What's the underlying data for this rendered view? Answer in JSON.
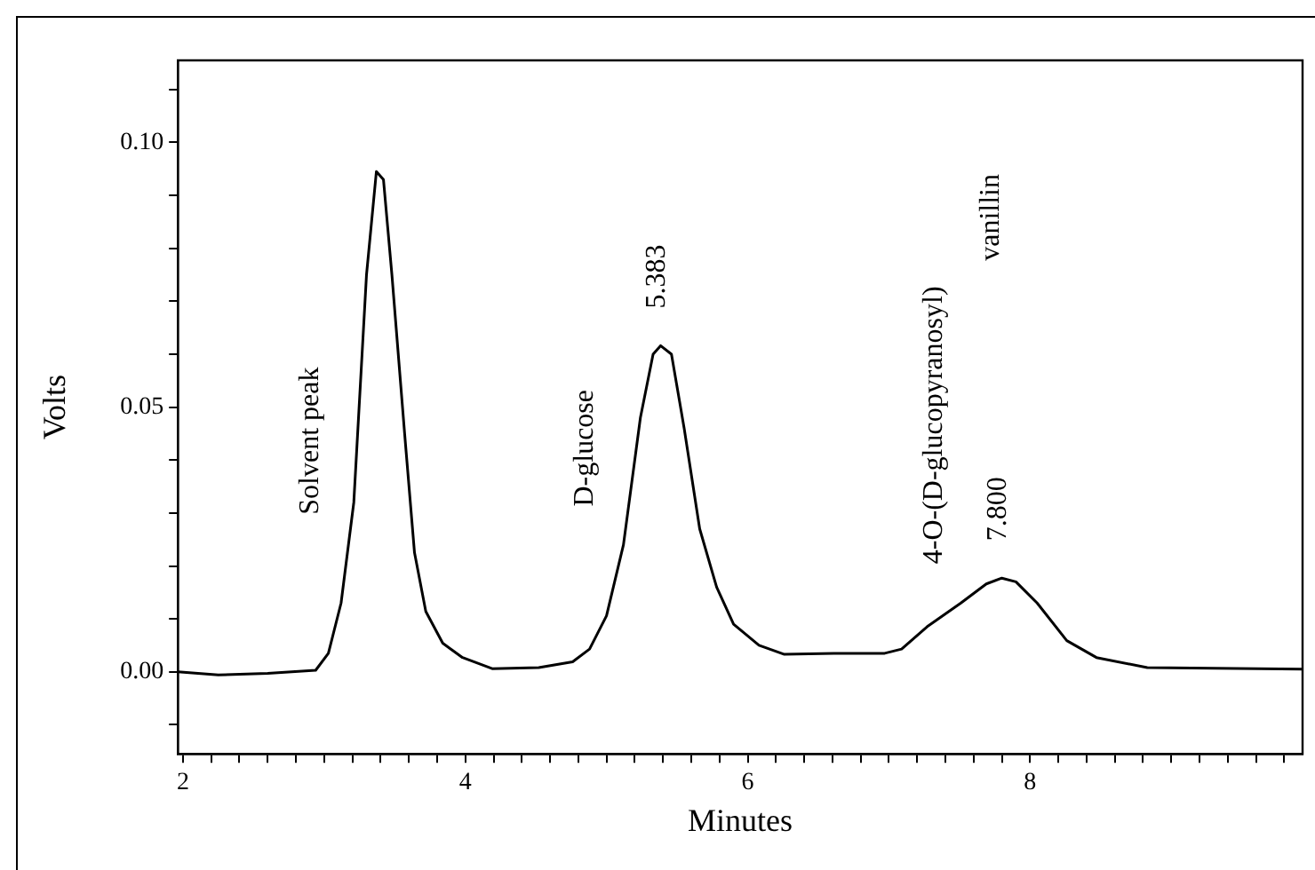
{
  "chart_data": {
    "type": "line",
    "xlabel": "Minutes",
    "ylabel": "Volts",
    "color": "#000000",
    "marker": "none",
    "x": [
      1.964,
      2.25,
      2.6,
      2.94,
      3.03,
      3.12,
      3.21,
      3.3,
      3.37,
      3.42,
      3.48,
      3.57,
      3.64,
      3.72,
      3.84,
      3.98,
      4.19,
      4.52,
      4.76,
      4.88,
      5.0,
      5.12,
      5.24,
      5.33,
      5.383,
      5.46,
      5.55,
      5.66,
      5.78,
      5.9,
      6.08,
      6.26,
      6.61,
      6.97,
      7.09,
      7.27,
      7.51,
      7.69,
      7.8,
      7.9,
      8.05,
      8.26,
      8.47,
      8.83,
      9.93
    ],
    "values": [
      0.0,
      -0.0006,
      -0.0003,
      0.0003,
      0.0035,
      0.013,
      0.032,
      0.075,
      0.0945,
      0.093,
      0.075,
      0.045,
      0.0225,
      0.0114,
      0.0054,
      0.0027,
      0.0006,
      0.0008,
      0.0019,
      0.0043,
      0.0106,
      0.024,
      0.048,
      0.06,
      0.0616,
      0.06,
      0.046,
      0.027,
      0.016,
      0.009,
      0.005,
      0.0033,
      0.0035,
      0.0035,
      0.0043,
      0.0085,
      0.013,
      0.0166,
      0.0177,
      0.017,
      0.013,
      0.0059,
      0.0027,
      0.0008,
      0.0005
    ],
    "xlim": [
      1.964,
      9.93
    ],
    "xticks": [
      2,
      {
        "value": 2.2,
        "label": null
      },
      {
        "value": 2.4,
        "label": null
      },
      {
        "value": 2.6,
        "label": null
      },
      {
        "value": 2.8,
        "label": null
      },
      {
        "value": 3,
        "label": null
      },
      {
        "value": 3.2,
        "label": null
      },
      {
        "value": 3.4,
        "label": null
      },
      {
        "value": 3.6,
        "label": null
      },
      {
        "value": 3.8,
        "label": null
      },
      4,
      {
        "value": 4.2,
        "label": null
      },
      {
        "value": 4.4,
        "label": null
      },
      {
        "value": 4.6,
        "label": null
      },
      {
        "value": 4.8,
        "label": null
      },
      {
        "value": 5,
        "label": null
      },
      {
        "value": 5.2,
        "label": null
      },
      {
        "value": 5.4,
        "label": null
      },
      {
        "value": 5.6,
        "label": null
      },
      {
        "value": 5.8,
        "label": null
      },
      6,
      {
        "value": 6.2,
        "label": null
      },
      {
        "value": 6.4,
        "label": null
      },
      {
        "value": 6.6,
        "label": null
      },
      {
        "value": 6.8,
        "label": null
      },
      {
        "value": 7,
        "label": null
      },
      {
        "value": 7.2,
        "label": null
      },
      {
        "value": 7.4,
        "label": null
      },
      {
        "value": 7.6,
        "label": null
      },
      {
        "value": 7.8,
        "label": null
      },
      8,
      {
        "value": 8.2,
        "label": null
      },
      {
        "value": 8.4,
        "label": null
      },
      {
        "value": 8.6,
        "label": null
      },
      {
        "value": 8.8,
        "label": null
      },
      {
        "value": 9,
        "label": null
      },
      {
        "value": 9.2,
        "label": null
      },
      {
        "value": 9.4,
        "label": null
      },
      {
        "value": 9.6,
        "label": null
      },
      {
        "value": 9.8,
        "label": null
      }
    ],
    "ylim": [
      -0.0155,
      0.1155
    ],
    "yticks": [
      {
        "value": -0.01,
        "label": null
      },
      {
        "value": 0,
        "label": "0.00"
      },
      {
        "value": 0.01,
        "label": null
      },
      {
        "value": 0.02,
        "label": null
      },
      {
        "value": 0.03,
        "label": null
      },
      {
        "value": 0.04,
        "label": null
      },
      {
        "value": 0.05,
        "label": "0.05"
      },
      {
        "value": 0.06,
        "label": null
      },
      {
        "value": 0.07,
        "label": null
      },
      {
        "value": 0.08,
        "label": null
      },
      {
        "value": 0.09,
        "label": null
      },
      {
        "value": 0.1,
        "label": "0.10"
      },
      {
        "value": 0.11,
        "label": null
      }
    ],
    "annotations": [
      "Solvent peak",
      {
        "text": "D-glucose",
        "x": 5.24,
        "y": 0.048
      },
      {
        "text": "5.383",
        "x": 5.383,
        "y": 0.0616
      },
      {
        "text": "4-O-(D-glucopyranosyl)",
        "x": 7.51,
        "y": 0.013
      },
      "vanillin",
      {
        "text": "7.800",
        "x": 7.8,
        "y": 0.0177
      }
    ]
  }
}
